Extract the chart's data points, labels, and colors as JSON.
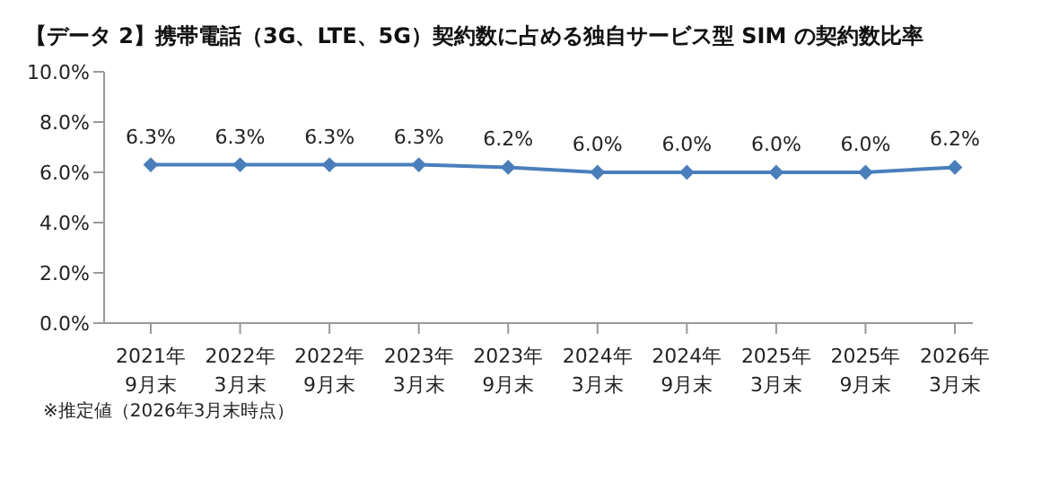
{
  "chart_data": {
    "type": "line",
    "title": "【データ 2】携帯電話（3G、LTE、5G）契約数に占める独自サービス型 SIM の契約数比率",
    "categories": [
      "2021年\n9月末",
      "2022年\n3月末",
      "2022年\n9月末",
      "2023年\n3月末",
      "2023年\n9月末",
      "2024年\n3月末",
      "2024年\n9月末",
      "2025年\n3月末",
      "2025年\n9月末",
      "2026年\n3月末"
    ],
    "series": [
      {
        "color": "#4a7ebb",
        "values": [
          6.3,
          6.3,
          6.3,
          6.3,
          6.2,
          6.0,
          6.0,
          6.0,
          6.0,
          6.2
        ],
        "value_labels": [
          "6.3%",
          "6.3%",
          "6.3%",
          "6.3%",
          "6.2%",
          "6.0%",
          "6.0%",
          "6.0%",
          "6.0%",
          "6.2%"
        ]
      }
    ],
    "ylim": [
      0,
      10
    ],
    "yticks": [
      {
        "value": 0,
        "label": "0.0%"
      },
      {
        "value": 2,
        "label": "2.0%"
      },
      {
        "value": 4,
        "label": "4.0%"
      },
      {
        "value": 6,
        "label": "6.0%"
      },
      {
        "value": 8,
        "label": "8.0%"
      },
      {
        "value": 10,
        "label": "10.0%"
      }
    ],
    "marker": "diamond",
    "line_style": "solid",
    "grid": false,
    "legend": false,
    "annotations": [
      "※推定値（2026年3月末時点）"
    ]
  }
}
